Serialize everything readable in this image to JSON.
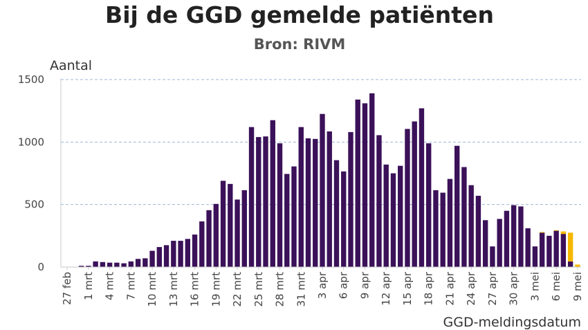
{
  "chart_data": {
    "type": "bar",
    "title": "Bij de GGD gemelde patiënten",
    "subtitle": "Bron: RIVM",
    "ylabel": "Aantal",
    "xlabel": "GGD-meldingsdatum",
    "ylim": [
      0,
      1500
    ],
    "yticks": [
      0,
      500,
      1000,
      1500
    ],
    "grid": true,
    "categories": [
      "27 feb",
      "28 feb",
      "29 feb",
      "1 mrt",
      "2 mrt",
      "3 mrt",
      "4 mrt",
      "5 mrt",
      "6 mrt",
      "7 mrt",
      "8 mrt",
      "9 mrt",
      "10 mrt",
      "11 mrt",
      "12 mrt",
      "13 mrt",
      "14 mrt",
      "15 mrt",
      "16 mrt",
      "17 mrt",
      "18 mrt",
      "19 mrt",
      "20 mrt",
      "21 mrt",
      "22 mrt",
      "23 mrt",
      "24 mrt",
      "25 mrt",
      "26 mrt",
      "27 mrt",
      "28 mrt",
      "29 mrt",
      "30 mrt",
      "31 mrt",
      "1 apr",
      "2 apr",
      "3 apr",
      "4 apr",
      "5 apr",
      "6 apr",
      "7 apr",
      "8 apr",
      "9 apr",
      "10 apr",
      "11 apr",
      "12 apr",
      "13 apr",
      "14 apr",
      "15 apr",
      "16 apr",
      "17 apr",
      "18 apr",
      "19 apr",
      "20 apr",
      "21 apr",
      "22 apr",
      "23 apr",
      "24 apr",
      "25 apr",
      "26 apr",
      "27 apr",
      "28 apr",
      "29 apr",
      "30 apr",
      "1 mei",
      "2 mei",
      "3 mei",
      "4 mei",
      "5 mei",
      "6 mei",
      "7 mei",
      "8 mei",
      "9 mei"
    ],
    "tick_labels": [
      "27 feb",
      "1 mrt",
      "4 mrt",
      "7 mrt",
      "10 mrt",
      "13 mrt",
      "16 mrt",
      "19 mrt",
      "22 mrt",
      "25 mrt",
      "28 mrt",
      "31 mrt",
      "3 apr",
      "6 apr",
      "9 apr",
      "12 apr",
      "15 apr",
      "18 apr",
      "21 apr",
      "24 apr",
      "27 apr",
      "30 apr",
      "3 mei",
      "6 mei",
      "9 mei"
    ],
    "series": [
      {
        "color": "#3b1159",
        "values": [
          0,
          0,
          10,
          10,
          45,
          40,
          35,
          35,
          30,
          45,
          65,
          70,
          130,
          160,
          175,
          210,
          210,
          225,
          260,
          365,
          455,
          505,
          690,
          665,
          540,
          615,
          1120,
          1040,
          1045,
          1175,
          990,
          745,
          805,
          1120,
          1030,
          1025,
          1225,
          1085,
          855,
          765,
          1080,
          1340,
          1310,
          1390,
          1055,
          820,
          750,
          810,
          1105,
          1165,
          1270,
          990,
          615,
          595,
          705,
          970,
          800,
          655,
          570,
          375,
          165,
          385,
          450,
          495,
          485,
          310,
          165,
          275,
          250,
          290,
          265,
          45,
          0
        ]
      },
      {
        "color": "#f5b800",
        "values": [
          0,
          0,
          0,
          0,
          0,
          0,
          0,
          0,
          0,
          0,
          0,
          0,
          0,
          0,
          0,
          0,
          0,
          0,
          0,
          0,
          0,
          0,
          0,
          0,
          0,
          0,
          0,
          0,
          0,
          0,
          0,
          0,
          0,
          0,
          0,
          0,
          0,
          0,
          0,
          0,
          0,
          0,
          0,
          0,
          0,
          0,
          0,
          0,
          0,
          0,
          0,
          0,
          0,
          0,
          0,
          0,
          0,
          0,
          0,
          0,
          0,
          0,
          0,
          0,
          0,
          0,
          0,
          5,
          0,
          5,
          20,
          230,
          20
        ]
      }
    ]
  }
}
